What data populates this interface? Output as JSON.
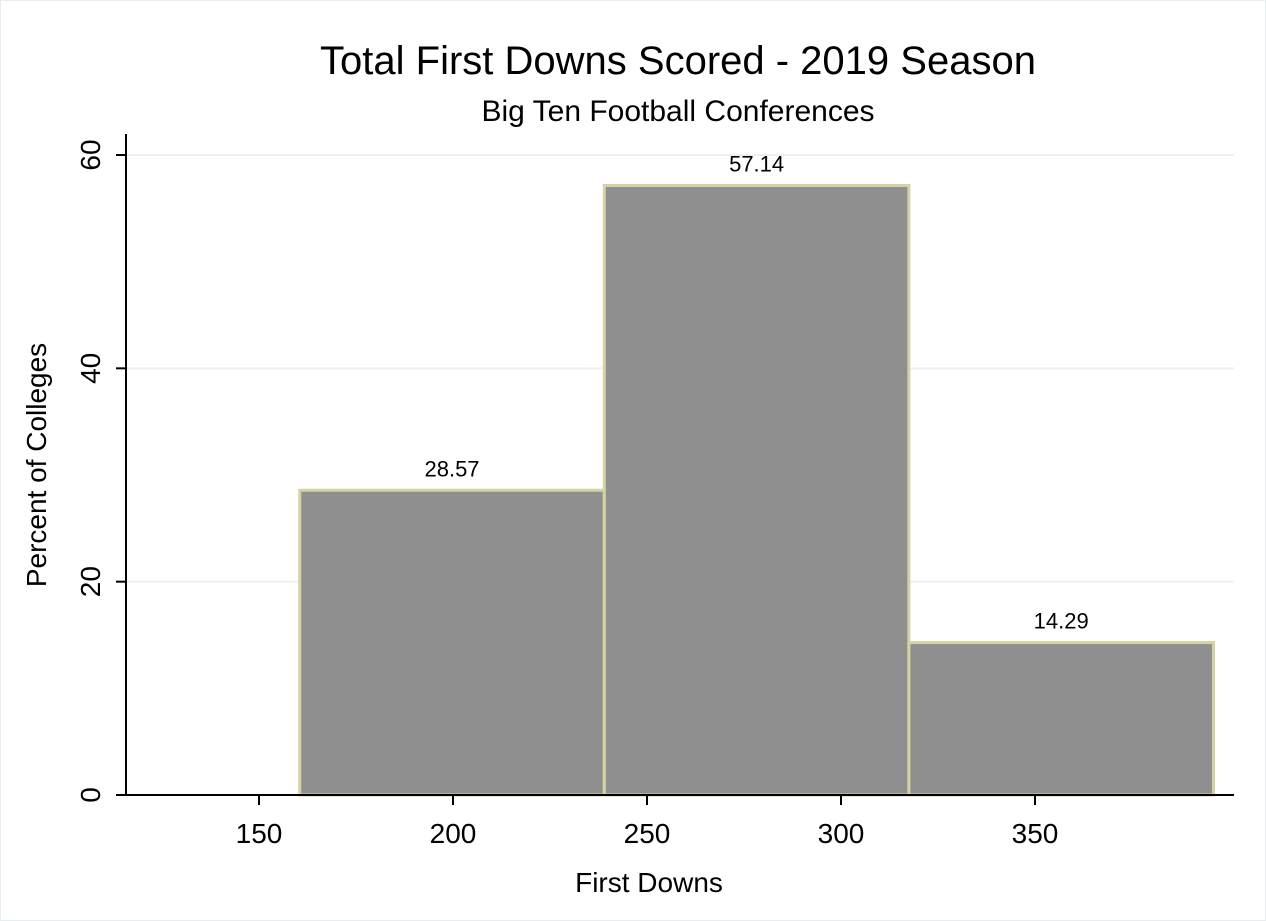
{
  "chart_data": {
    "type": "bar",
    "title": "Total First Downs Scored - 2019 Season",
    "subtitle": "Big Ten Football Conferences",
    "xlabel": "First Downs",
    "ylabel": "Percent of Colleges",
    "x_ticks": [
      150,
      200,
      250,
      300,
      350
    ],
    "y_ticks": [
      0,
      20,
      40,
      60
    ],
    "xlim": [
      120,
      400
    ],
    "ylim": [
      0,
      62
    ],
    "grid": true,
    "bins": [
      {
        "start": 160.5,
        "end": 239,
        "value": 28.57,
        "label": "28.57"
      },
      {
        "start": 239,
        "end": 317.5,
        "value": 57.14,
        "label": "57.14"
      },
      {
        "start": 317.5,
        "end": 396,
        "value": 14.29,
        "label": "14.29"
      }
    ],
    "colors": {
      "bar_fill": "#8f8f8f",
      "bar_stroke": "#d6d2a2",
      "grid": "#eef0f0",
      "axis": "#000000"
    }
  }
}
